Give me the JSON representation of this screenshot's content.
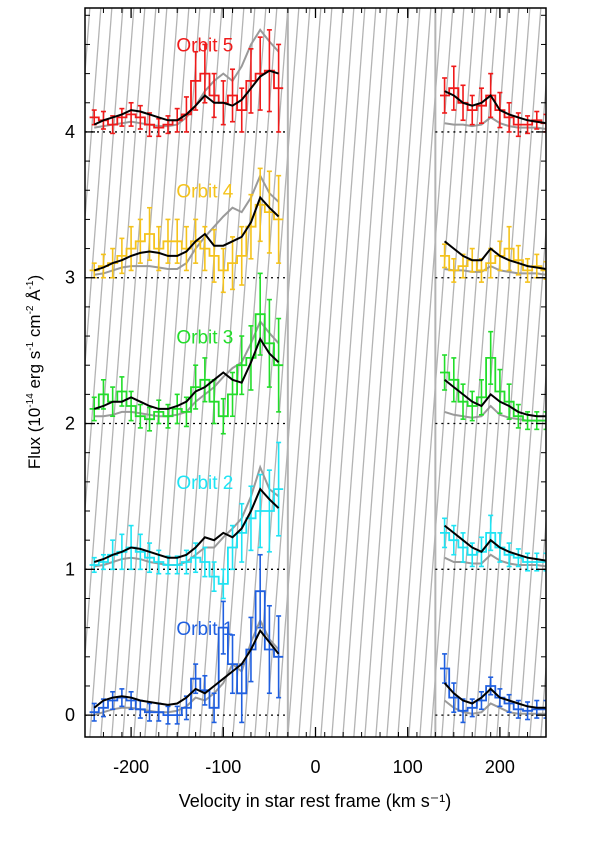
{
  "chart_data": {
    "type": "line",
    "xlabel": "Velocity in star rest frame (km s⁻¹)",
    "ylabel": {
      "prefix": "Flux (10",
      "exp1": "-14",
      "mid1": " erg s",
      "exp2": "-1",
      "mid2": " cm",
      "exp3": "-2",
      "mid3": " Å",
      "exp4": "-1",
      "suffix": ")"
    },
    "xlim": [
      -250,
      250
    ],
    "ylim": [
      -0.15,
      4.85
    ],
    "x_ticks": [
      -200,
      -100,
      0,
      100,
      200
    ],
    "x_tick_labels": [
      "-200",
      "-100",
      "0",
      "100",
      "200"
    ],
    "y_ticks": [
      0,
      1,
      2,
      3,
      4
    ],
    "y_tick_labels": [
      "0",
      "1",
      "2",
      "3",
      "4"
    ],
    "masked_region": [
      -30,
      130
    ],
    "model_colors": {
      "model_dark": "#000000",
      "model_grey": "#9a9a9a"
    },
    "orbits": [
      {
        "label": "Orbit 1",
        "color": "#1f5fe0",
        "offset": 0,
        "label_pos": [
          -120,
          0.55
        ],
        "left": {
          "x": [
            -240,
            -230,
            -220,
            -210,
            -200,
            -190,
            -180,
            -170,
            -160,
            -150,
            -140,
            -130,
            -120,
            -110,
            -100,
            -90,
            -80,
            -70,
            -60,
            -50,
            -40
          ],
          "y": [
            0.02,
            0.05,
            0.1,
            0.12,
            0.1,
            0.04,
            0.02,
            0.02,
            0.0,
            0.0,
            0.05,
            0.25,
            0.17,
            0.05,
            0.6,
            0.35,
            0.15,
            0.45,
            0.85,
            0.45,
            0.4
          ],
          "err": [
            0.06,
            0.06,
            0.06,
            0.06,
            0.06,
            0.06,
            0.06,
            0.06,
            0.06,
            0.06,
            0.08,
            0.1,
            0.1,
            0.1,
            0.18,
            0.2,
            0.2,
            0.22,
            0.25,
            0.3,
            0.28
          ],
          "model_dark": [
            0.05,
            0.1,
            0.12,
            0.13,
            0.12,
            0.1,
            0.09,
            0.08,
            0.07,
            0.08,
            0.12,
            0.18,
            0.15,
            0.2,
            0.25,
            0.3,
            0.35,
            0.45,
            0.58,
            0.5,
            0.42
          ],
          "model_grey": [
            0.0,
            0.02,
            0.04,
            0.05,
            0.05,
            0.04,
            0.03,
            0.02,
            0.02,
            0.03,
            0.06,
            0.12,
            0.1,
            0.15,
            0.22,
            0.35,
            0.3,
            0.5,
            0.65,
            0.52,
            0.45
          ]
        },
        "right": {
          "x": [
            140,
            150,
            160,
            170,
            180,
            190,
            200,
            210,
            220,
            230,
            240,
            250
          ],
          "y": [
            0.32,
            0.12,
            0.03,
            0.05,
            0.1,
            0.2,
            0.12,
            0.08,
            0.04,
            0.03,
            0.04,
            0.04
          ],
          "err": [
            0.1,
            0.1,
            0.08,
            0.06,
            0.06,
            0.06,
            0.06,
            0.06,
            0.06,
            0.06,
            0.06,
            0.06
          ],
          "model_dark": [
            0.22,
            0.15,
            0.1,
            0.08,
            0.12,
            0.18,
            0.12,
            0.1,
            0.08,
            0.06,
            0.05,
            0.05
          ],
          "model_grey": [
            0.1,
            0.05,
            0.02,
            0.01,
            0.02,
            0.08,
            0.05,
            0.02,
            0.01,
            0.01,
            0.01,
            0.01
          ]
        }
      },
      {
        "label": "Orbit 2",
        "color": "#1ee4f4",
        "offset": 1,
        "label_pos": [
          -120,
          1.55
        ],
        "left": {
          "x": [
            -240,
            -230,
            -220,
            -210,
            -200,
            -190,
            -180,
            -170,
            -160,
            -150,
            -140,
            -130,
            -120,
            -110,
            -100,
            -90,
            -80,
            -70,
            -60,
            -50,
            -40
          ],
          "y": [
            1.03,
            1.05,
            1.1,
            1.12,
            1.15,
            1.12,
            1.08,
            1.05,
            1.03,
            1.03,
            1.05,
            1.08,
            1.05,
            0.95,
            0.9,
            1.15,
            1.25,
            1.35,
            1.4,
            1.4,
            1.55
          ],
          "err": [
            0.05,
            0.05,
            0.1,
            0.12,
            0.15,
            0.12,
            0.1,
            0.08,
            0.06,
            0.06,
            0.08,
            0.1,
            0.1,
            0.1,
            0.1,
            0.15,
            0.2,
            0.22,
            0.25,
            0.28,
            0.32
          ],
          "model_dark": [
            1.05,
            1.07,
            1.1,
            1.12,
            1.15,
            1.14,
            1.12,
            1.1,
            1.08,
            1.08,
            1.1,
            1.15,
            1.22,
            1.2,
            1.25,
            1.22,
            1.28,
            1.4,
            1.55,
            1.48,
            1.42
          ],
          "model_grey": [
            1.02,
            1.03,
            1.05,
            1.07,
            1.08,
            1.07,
            1.05,
            1.04,
            1.03,
            1.03,
            1.05,
            1.1,
            1.15,
            1.15,
            1.22,
            1.28,
            1.35,
            1.5,
            1.7,
            1.55,
            1.5
          ]
        },
        "right": {
          "x": [
            140,
            150,
            160,
            170,
            180,
            190,
            200,
            210,
            220,
            230,
            240,
            250
          ],
          "y": [
            1.25,
            1.2,
            1.15,
            1.1,
            1.12,
            1.25,
            1.15,
            1.1,
            1.08,
            1.05,
            1.05,
            1.05
          ],
          "err": [
            0.1,
            0.1,
            0.1,
            0.08,
            0.1,
            0.12,
            0.1,
            0.08,
            0.06,
            0.06,
            0.06,
            0.06
          ],
          "model_dark": [
            1.3,
            1.25,
            1.2,
            1.15,
            1.12,
            1.2,
            1.15,
            1.12,
            1.1,
            1.08,
            1.07,
            1.06
          ],
          "model_grey": [
            1.08,
            1.05,
            1.05,
            1.04,
            1.04,
            1.1,
            1.06,
            1.04,
            1.03,
            1.03,
            1.03,
            1.02
          ]
        }
      },
      {
        "label": "Orbit 3",
        "color": "#22dd2a",
        "offset": 2,
        "label_pos": [
          -120,
          2.55
        ],
        "left": {
          "x": [
            -240,
            -230,
            -220,
            -210,
            -200,
            -190,
            -180,
            -170,
            -160,
            -150,
            -140,
            -130,
            -120,
            -110,
            -100,
            -90,
            -80,
            -70,
            -60,
            -50,
            -40
          ],
          "y": [
            2.1,
            2.2,
            2.15,
            2.22,
            2.12,
            2.05,
            2.03,
            2.08,
            2.05,
            2.1,
            2.08,
            2.25,
            2.3,
            2.15,
            2.05,
            2.2,
            2.4,
            2.45,
            2.75,
            2.55,
            2.4
          ],
          "err": [
            0.08,
            0.1,
            0.1,
            0.1,
            0.1,
            0.08,
            0.08,
            0.08,
            0.08,
            0.1,
            0.1,
            0.15,
            0.15,
            0.15,
            0.12,
            0.15,
            0.2,
            0.22,
            0.28,
            0.3,
            0.32
          ],
          "model_dark": [
            2.1,
            2.12,
            2.15,
            2.15,
            2.18,
            2.15,
            2.12,
            2.1,
            2.1,
            2.12,
            2.15,
            2.22,
            2.25,
            2.3,
            2.35,
            2.3,
            2.28,
            2.42,
            2.58,
            2.48,
            2.42
          ],
          "model_grey": [
            2.05,
            2.05,
            2.06,
            2.08,
            2.08,
            2.07,
            2.06,
            2.05,
            2.05,
            2.06,
            2.08,
            2.15,
            2.2,
            2.25,
            2.32,
            2.38,
            2.42,
            2.55,
            2.7,
            2.62,
            2.55
          ]
        },
        "right": {
          "x": [
            140,
            150,
            160,
            170,
            180,
            190,
            200,
            210,
            220,
            230,
            240,
            250
          ],
          "y": [
            2.35,
            2.3,
            2.15,
            2.12,
            2.18,
            2.45,
            2.22,
            2.15,
            2.05,
            2.02,
            2.02,
            2.02
          ],
          "err": [
            0.12,
            0.15,
            0.12,
            0.1,
            0.12,
            0.18,
            0.15,
            0.12,
            0.08,
            0.06,
            0.06,
            0.06
          ],
          "model_dark": [
            2.3,
            2.25,
            2.2,
            2.15,
            2.12,
            2.2,
            2.15,
            2.12,
            2.08,
            2.06,
            2.05,
            2.05
          ],
          "model_grey": [
            2.08,
            2.06,
            2.05,
            2.04,
            2.05,
            2.12,
            2.06,
            2.04,
            2.03,
            2.02,
            2.02,
            2.02
          ]
        }
      },
      {
        "label": "Orbit 4",
        "color": "#f5c31c",
        "offset": 3,
        "label_pos": [
          -120,
          3.55
        ],
        "left": {
          "x": [
            -240,
            -230,
            -220,
            -210,
            -200,
            -190,
            -180,
            -170,
            -160,
            -150,
            -140,
            -130,
            -120,
            -110,
            -100,
            -90,
            -80,
            -70,
            -60,
            -50,
            -40
          ],
          "y": [
            3.05,
            3.08,
            3.1,
            3.15,
            3.2,
            3.25,
            3.3,
            3.2,
            3.25,
            3.25,
            3.2,
            3.25,
            3.2,
            3.15,
            3.05,
            3.1,
            3.15,
            3.35,
            3.5,
            3.45,
            3.4
          ],
          "err": [
            0.05,
            0.08,
            0.1,
            0.12,
            0.15,
            0.15,
            0.18,
            0.15,
            0.15,
            0.15,
            0.15,
            0.15,
            0.15,
            0.18,
            0.15,
            0.18,
            0.2,
            0.22,
            0.25,
            0.28,
            0.3
          ],
          "model_dark": [
            3.05,
            3.07,
            3.1,
            3.12,
            3.15,
            3.17,
            3.18,
            3.17,
            3.15,
            3.15,
            3.18,
            3.25,
            3.3,
            3.22,
            3.22,
            3.25,
            3.28,
            3.38,
            3.55,
            3.48,
            3.42
          ],
          "model_grey": [
            3.02,
            3.03,
            3.05,
            3.07,
            3.08,
            3.08,
            3.08,
            3.07,
            3.06,
            3.06,
            3.1,
            3.2,
            3.28,
            3.35,
            3.42,
            3.48,
            3.45,
            3.55,
            3.7,
            3.58,
            3.52
          ]
        },
        "right": {
          "x": [
            140,
            150,
            160,
            170,
            180,
            190,
            200,
            210,
            220,
            230,
            240,
            250
          ],
          "y": [
            3.15,
            3.05,
            3.08,
            3.12,
            3.05,
            3.1,
            3.15,
            3.2,
            3.12,
            3.05,
            3.08,
            3.05
          ],
          "err": [
            0.08,
            0.08,
            0.08,
            0.08,
            0.08,
            0.1,
            0.1,
            0.15,
            0.1,
            0.08,
            0.08,
            0.06
          ],
          "model_dark": [
            3.25,
            3.2,
            3.15,
            3.12,
            3.12,
            3.2,
            3.15,
            3.12,
            3.1,
            3.08,
            3.07,
            3.06
          ],
          "model_grey": [
            3.06,
            3.05,
            3.05,
            3.04,
            3.04,
            3.08,
            3.05,
            3.04,
            3.03,
            3.03,
            3.03,
            3.02
          ]
        }
      },
      {
        "label": "Orbit 5",
        "color": "#f01a1a",
        "offset": 4,
        "label_pos": [
          -120,
          4.55
        ],
        "left": {
          "x": [
            -240,
            -230,
            -220,
            -210,
            -200,
            -190,
            -180,
            -170,
            -160,
            -150,
            -140,
            -130,
            -120,
            -110,
            -100,
            -90,
            -80,
            -70,
            -60,
            -50,
            -40
          ],
          "y": [
            4.1,
            4.08,
            4.05,
            4.1,
            4.12,
            4.1,
            4.05,
            4.03,
            4.05,
            4.08,
            4.12,
            4.35,
            4.4,
            4.25,
            4.2,
            4.25,
            4.15,
            4.35,
            4.4,
            4.42,
            4.3
          ],
          "err": [
            0.05,
            0.06,
            0.06,
            0.06,
            0.08,
            0.08,
            0.08,
            0.06,
            0.06,
            0.08,
            0.12,
            0.2,
            0.2,
            0.15,
            0.15,
            0.18,
            0.15,
            0.22,
            0.25,
            0.28,
            0.3
          ],
          "model_dark": [
            4.05,
            4.08,
            4.1,
            4.12,
            4.15,
            4.14,
            4.12,
            4.1,
            4.08,
            4.08,
            4.12,
            4.18,
            4.25,
            4.2,
            4.2,
            4.18,
            4.22,
            4.3,
            4.38,
            4.42,
            4.4
          ],
          "model_grey": [
            4.03,
            4.04,
            4.05,
            4.06,
            4.07,
            4.06,
            4.05,
            4.04,
            4.04,
            4.05,
            4.1,
            4.18,
            4.28,
            4.35,
            4.4,
            4.35,
            4.45,
            4.6,
            4.7,
            4.62,
            4.55
          ]
        },
        "right": {
          "x": [
            140,
            150,
            160,
            170,
            180,
            190,
            200,
            210,
            220,
            230,
            240,
            250
          ],
          "y": [
            4.25,
            4.3,
            4.2,
            4.15,
            4.18,
            4.25,
            4.15,
            4.1,
            4.05,
            4.05,
            4.08,
            4.06
          ],
          "err": [
            0.12,
            0.15,
            0.12,
            0.1,
            0.12,
            0.15,
            0.12,
            0.1,
            0.08,
            0.06,
            0.06,
            0.06
          ],
          "model_dark": [
            4.28,
            4.25,
            4.2,
            4.18,
            4.2,
            4.25,
            4.15,
            4.12,
            4.1,
            4.08,
            4.07,
            4.06
          ],
          "model_grey": [
            4.06,
            4.05,
            4.05,
            4.04,
            4.05,
            4.1,
            4.06,
            4.04,
            4.03,
            4.03,
            4.03,
            4.02
          ]
        }
      }
    ]
  }
}
